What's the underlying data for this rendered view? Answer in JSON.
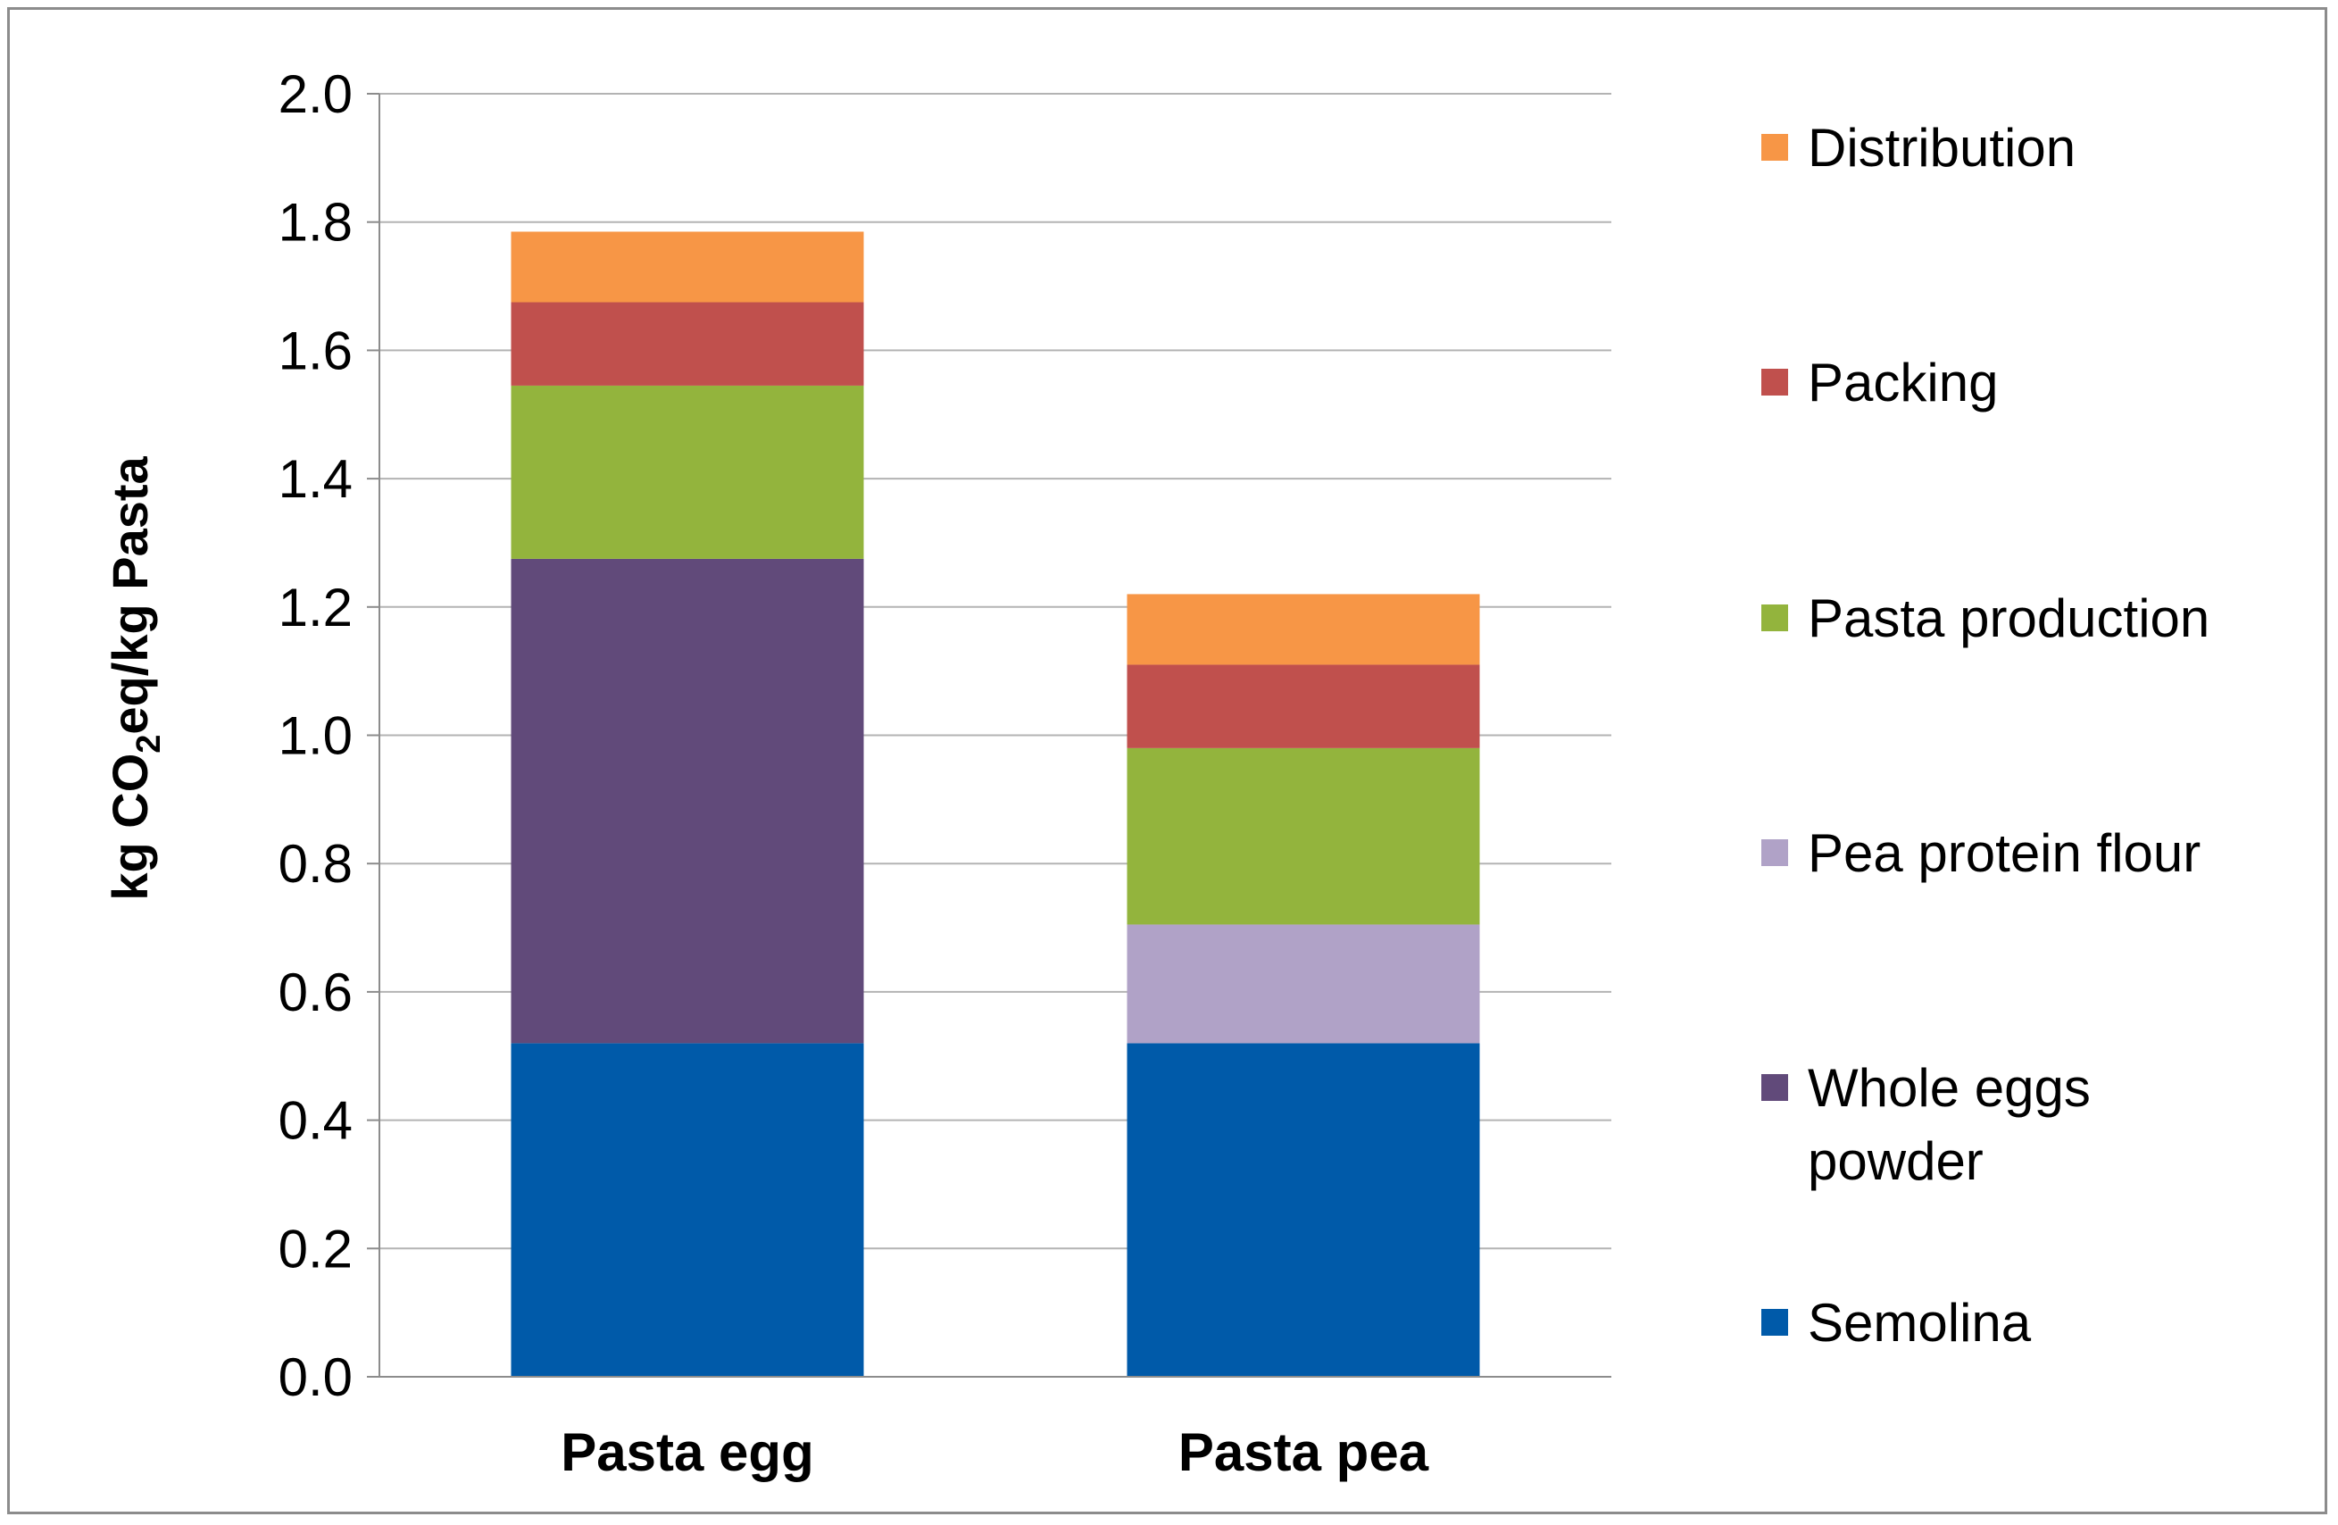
{
  "chart_data": {
    "type": "bar",
    "stacked": true,
    "categories": [
      "Pasta egg",
      "Pasta pea"
    ],
    "series": [
      {
        "name": "Semolina",
        "values": [
          0.52,
          0.52
        ],
        "color": "#005aa9"
      },
      {
        "name": "Whole eggs powder",
        "legend_lines": [
          "Whole eggs",
          "powder"
        ],
        "values": [
          0.755,
          0.0
        ],
        "color": "#614a7a"
      },
      {
        "name": "Pea protein flour",
        "values": [
          0.0,
          0.185
        ],
        "color": "#b0a2c7"
      },
      {
        "name": "Pasta production",
        "values": [
          0.27,
          0.275
        ],
        "color": "#93b43d"
      },
      {
        "name": "Packing",
        "values": [
          0.13,
          0.13
        ],
        "color": "#c0504d"
      },
      {
        "name": "Distribution",
        "values": [
          0.11,
          0.11
        ],
        "color": "#f79646"
      }
    ],
    "ylabel": {
      "prefix": "kg CO",
      "subscript": "2",
      "suffix": "eq/kg Pasta"
    },
    "ylim": [
      0,
      2.0
    ],
    "yticks": [
      "0.0",
      "0.2",
      "0.4",
      "0.6",
      "0.8",
      "1.0",
      "1.2",
      "1.4",
      "1.6",
      "1.8",
      "2.0"
    ],
    "grid": true,
    "legend_position": "right",
    "legend_order": [
      "Distribution",
      "Packing",
      "Pasta production",
      "Pea protein flour",
      "Whole eggs powder",
      "Semolina"
    ]
  }
}
